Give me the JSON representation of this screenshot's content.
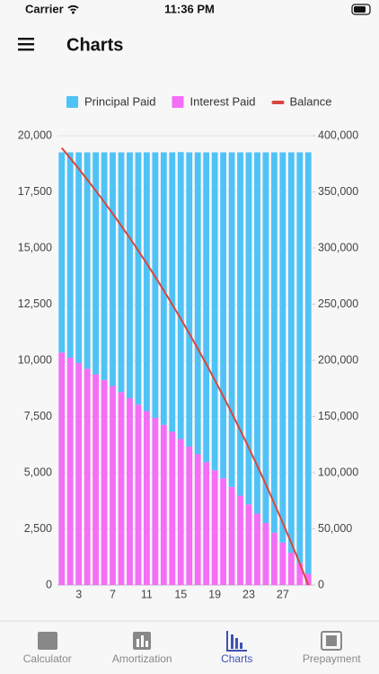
{
  "status_bar": {
    "carrier": "Carrier",
    "time": "11:36 PM"
  },
  "header": {
    "title": "Charts"
  },
  "chart_data": {
    "type": "stacked_bar",
    "categories": [
      null,
      null,
      "3",
      null,
      null,
      null,
      "7",
      null,
      null,
      null,
      "11",
      null,
      null,
      null,
      "15",
      null,
      null,
      null,
      "19",
      null,
      null,
      null,
      "23",
      null,
      null,
      null,
      "27",
      null,
      null,
      null
    ],
    "series": [
      {
        "name": "Principal Paid",
        "color": "#4fc3f7",
        "values": [
          8910,
          9140,
          9380,
          9630,
          9880,
          10130,
          10400,
          10670,
          10940,
          11230,
          11520,
          11820,
          12130,
          12440,
          12770,
          13100,
          13440,
          13790,
          14150,
          14510,
          14890,
          15280,
          15670,
          16080,
          16500,
          16930,
          17370,
          17820,
          18290,
          18760
        ]
      },
      {
        "name": "Interest Paid",
        "color": "#f46ef7",
        "values": [
          10350,
          10120,
          9880,
          9630,
          9380,
          9130,
          8860,
          8590,
          8320,
          8030,
          7740,
          7440,
          7130,
          6820,
          6500,
          6160,
          5820,
          5470,
          5110,
          4750,
          4370,
          3980,
          3590,
          3180,
          2760,
          2330,
          1890,
          1440,
          970,
          500
        ]
      },
      {
        "name": "Balance",
        "color": "#d9463e",
        "axis": "y2",
        "values": [
          389090,
          379940,
          370560,
          360940,
          351060,
          340930,
          330530,
          319870,
          308930,
          297700,
          286180,
          274360,
          262230,
          249790,
          237030,
          223930,
          210490,
          196700,
          182560,
          168050,
          153160,
          137880,
          122200,
          106120,
          89620,
          72690,
          55320,
          37500,
          19220,
          0
        ]
      }
    ],
    "ylim": [
      0,
      20000
    ],
    "yticks": [
      0,
      {
        "value": 2500,
        "label": "2,500"
      },
      {
        "value": 5000,
        "label": "5,000"
      },
      {
        "value": 7500,
        "label": "7,500"
      },
      {
        "value": 10000,
        "label": "10,000"
      },
      {
        "value": 12500,
        "label": "12,500"
      },
      {
        "value": 15000,
        "label": "15,000"
      },
      {
        "value": 17500,
        "label": "17,500"
      },
      {
        "value": 20000,
        "label": "20,000"
      }
    ],
    "y2lim": [
      0,
      400000
    ],
    "y2ticks": [
      0,
      {
        "value": 50000,
        "label": "50,000"
      },
      {
        "value": 100000,
        "label": "100,000"
      },
      {
        "value": 150000,
        "label": "150,000"
      },
      {
        "value": 200000,
        "label": "200,000"
      },
      {
        "value": 250000,
        "label": "250,000"
      },
      {
        "value": 300000,
        "label": "300,000"
      },
      {
        "value": 350000,
        "label": "350,000"
      },
      {
        "value": 400000,
        "label": "400,000"
      }
    ],
    "grid": true
  },
  "tabs": [
    {
      "label": "Calculator"
    },
    {
      "label": "Amortization"
    },
    {
      "label": "Charts",
      "active": true
    },
    {
      "label": "Prepayment"
    }
  ]
}
